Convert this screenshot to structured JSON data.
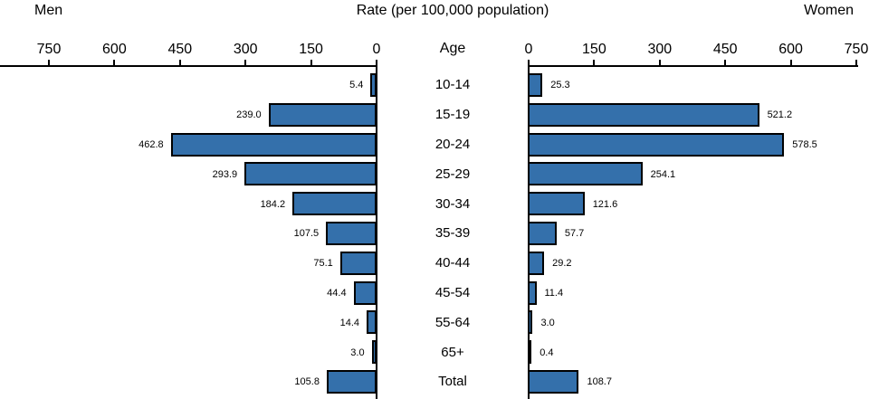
{
  "header": {
    "left_title": "Men",
    "center_title": "Rate (per 100,000 population)",
    "right_title": "Women",
    "age_label": "Age"
  },
  "chart_data": {
    "type": "bar",
    "subtype": "bilateral-population-pyramid",
    "title": "Rate (per 100,000 population)",
    "xlabel": "Rate (per 100,000 population)",
    "ylabel": "Age",
    "categories": [
      "10-14",
      "15-19",
      "20-24",
      "25-29",
      "30-34",
      "35-39",
      "40-44",
      "45-54",
      "55-64",
      "65+",
      "Total"
    ],
    "series": [
      {
        "name": "Men",
        "side": "left",
        "values": [
          5.4,
          239.0,
          462.8,
          293.9,
          184.2,
          107.5,
          75.1,
          44.4,
          14.4,
          3.0,
          105.8
        ],
        "labels": [
          "5.4",
          "239.0",
          "462.8",
          "293.9",
          "184.2",
          "107.5",
          "75.1",
          "44.4",
          "14.4",
          "3.0",
          "105.8"
        ]
      },
      {
        "name": "Women",
        "side": "right",
        "values": [
          25.3,
          521.2,
          578.5,
          254.1,
          121.6,
          57.7,
          29.2,
          11.4,
          3.0,
          0.4,
          108.7
        ],
        "labels": [
          "25.3",
          "521.2",
          "578.5",
          "254.1",
          "121.6",
          "57.7",
          "29.2",
          "11.4",
          "3.0",
          "0.4",
          "108.7"
        ]
      }
    ],
    "axis": {
      "ticks": [
        0,
        150,
        300,
        450,
        600,
        750
      ],
      "tick_labels": [
        "0",
        "150",
        "300",
        "450",
        "600",
        "750"
      ],
      "range": [
        0,
        750
      ],
      "position": "top",
      "left_axis_direction": "descending-toward-center",
      "right_axis_direction": "ascending-from-center"
    },
    "colors": {
      "bar_fill": "#3470AB",
      "bar_border": "#000000",
      "axis": "#000000",
      "text": "#000000"
    },
    "legend_position": "none",
    "grid": false
  }
}
